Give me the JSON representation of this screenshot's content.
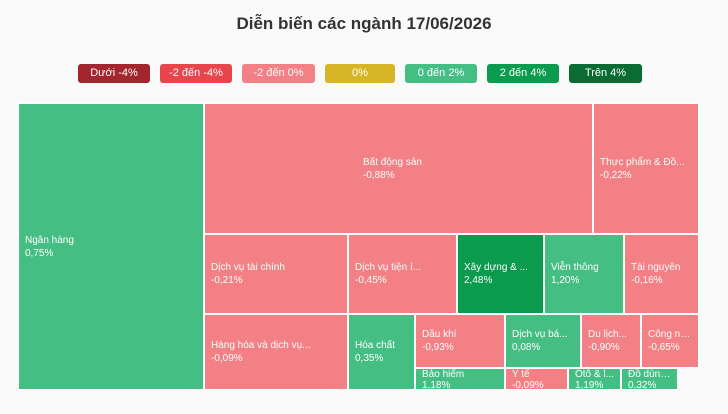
{
  "chart_data": {
    "type": "treemap",
    "title": "Diễn biến các ngành 17/06/2026",
    "legend": [
      {
        "label": "Dưới -4%",
        "color": "#a3262f"
      },
      {
        "label": "-2 đến -4%",
        "color": "#e8454d"
      },
      {
        "label": "-2 đến 0%",
        "color": "#f28084"
      },
      {
        "label": "0%",
        "color": "#d6b527"
      },
      {
        "label": "0 đến 2%",
        "color": "#45be84"
      },
      {
        "label": "2 đến 4%",
        "color": "#0b9b4e"
      },
      {
        "label": "Trên 4%",
        "color": "#0a6b33"
      }
    ],
    "cells": [
      {
        "name": "Ngân hàng",
        "change": "0,75%",
        "value": 0.75,
        "color": "#45be84"
      },
      {
        "name": "Bất động sản",
        "change": "-0,88%",
        "value": -0.88,
        "color": "#f28084"
      },
      {
        "name": "Thực phẩm & Đồ...",
        "change": "-0,22%",
        "value": -0.22,
        "color": "#f28084"
      },
      {
        "name": "Dịch vụ tài chính",
        "change": "-0,21%",
        "value": -0.21,
        "color": "#f28084"
      },
      {
        "name": "Dịch vụ tiện í...",
        "change": "-0,45%",
        "value": -0.45,
        "color": "#f28084"
      },
      {
        "name": "Xây dựng & ...",
        "change": "2,48%",
        "value": 2.48,
        "color": "#0b9b4e"
      },
      {
        "name": "Viễn thông",
        "change": "1,20%",
        "value": 1.2,
        "color": "#45be84"
      },
      {
        "name": "Tài nguyên",
        "change": "-0,16%",
        "value": -0.16,
        "color": "#f28084"
      },
      {
        "name": "Hàng hóa và dịch vụ...",
        "change": "-0,09%",
        "value": -0.09,
        "color": "#f28084"
      },
      {
        "name": "Hóa chất",
        "change": "0,35%",
        "value": 0.35,
        "color": "#45be84"
      },
      {
        "name": "Dầu khí",
        "change": "-0,93%",
        "value": -0.93,
        "color": "#f28084"
      },
      {
        "name": "Dịch vụ bá...",
        "change": "0,08%",
        "value": 0.08,
        "color": "#45be84"
      },
      {
        "name": "Du lịch...",
        "change": "-0,90%",
        "value": -0.9,
        "color": "#f28084"
      },
      {
        "name": "Công ng...",
        "change": "-0,65%",
        "value": -0.65,
        "color": "#f28084"
      },
      {
        "name": "Bảo hiểm",
        "change": "1,18%",
        "value": 1.18,
        "color": "#45be84"
      },
      {
        "name": "Y tế",
        "change": "-0,09%",
        "value": -0.09,
        "color": "#f28084"
      },
      {
        "name": "Ôtô & l...",
        "change": "1,19%",
        "value": 1.19,
        "color": "#45be84"
      },
      {
        "name": "Đồ dùng...",
        "change": "0,32%",
        "value": 0.32,
        "color": "#45be84"
      }
    ]
  }
}
